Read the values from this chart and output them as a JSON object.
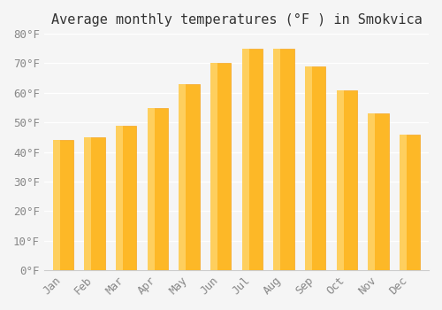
{
  "title": "Average monthly temperatures (°F ) in Smokvica",
  "months": [
    "Jan",
    "Feb",
    "Mar",
    "Apr",
    "May",
    "Jun",
    "Jul",
    "Aug",
    "Sep",
    "Oct",
    "Nov",
    "Dec"
  ],
  "values": [
    44,
    45,
    49,
    55,
    63,
    70,
    75,
    75,
    69,
    61,
    53,
    46
  ],
  "bar_color_main": "#FDB827",
  "bar_color_edge": "#F5A623",
  "bar_color_light": "#FECF5E",
  "ylim": [
    0,
    80
  ],
  "yticks": [
    0,
    10,
    20,
    30,
    40,
    50,
    60,
    70,
    80
  ],
  "ytick_labels": [
    "0°F",
    "10°F",
    "20°F",
    "30°F",
    "40°F",
    "50°F",
    "60°F",
    "70°F",
    "80°F"
  ],
  "background_color": "#f5f5f5",
  "grid_color": "#ffffff",
  "title_fontsize": 11,
  "tick_fontsize": 9,
  "font_family": "monospace"
}
